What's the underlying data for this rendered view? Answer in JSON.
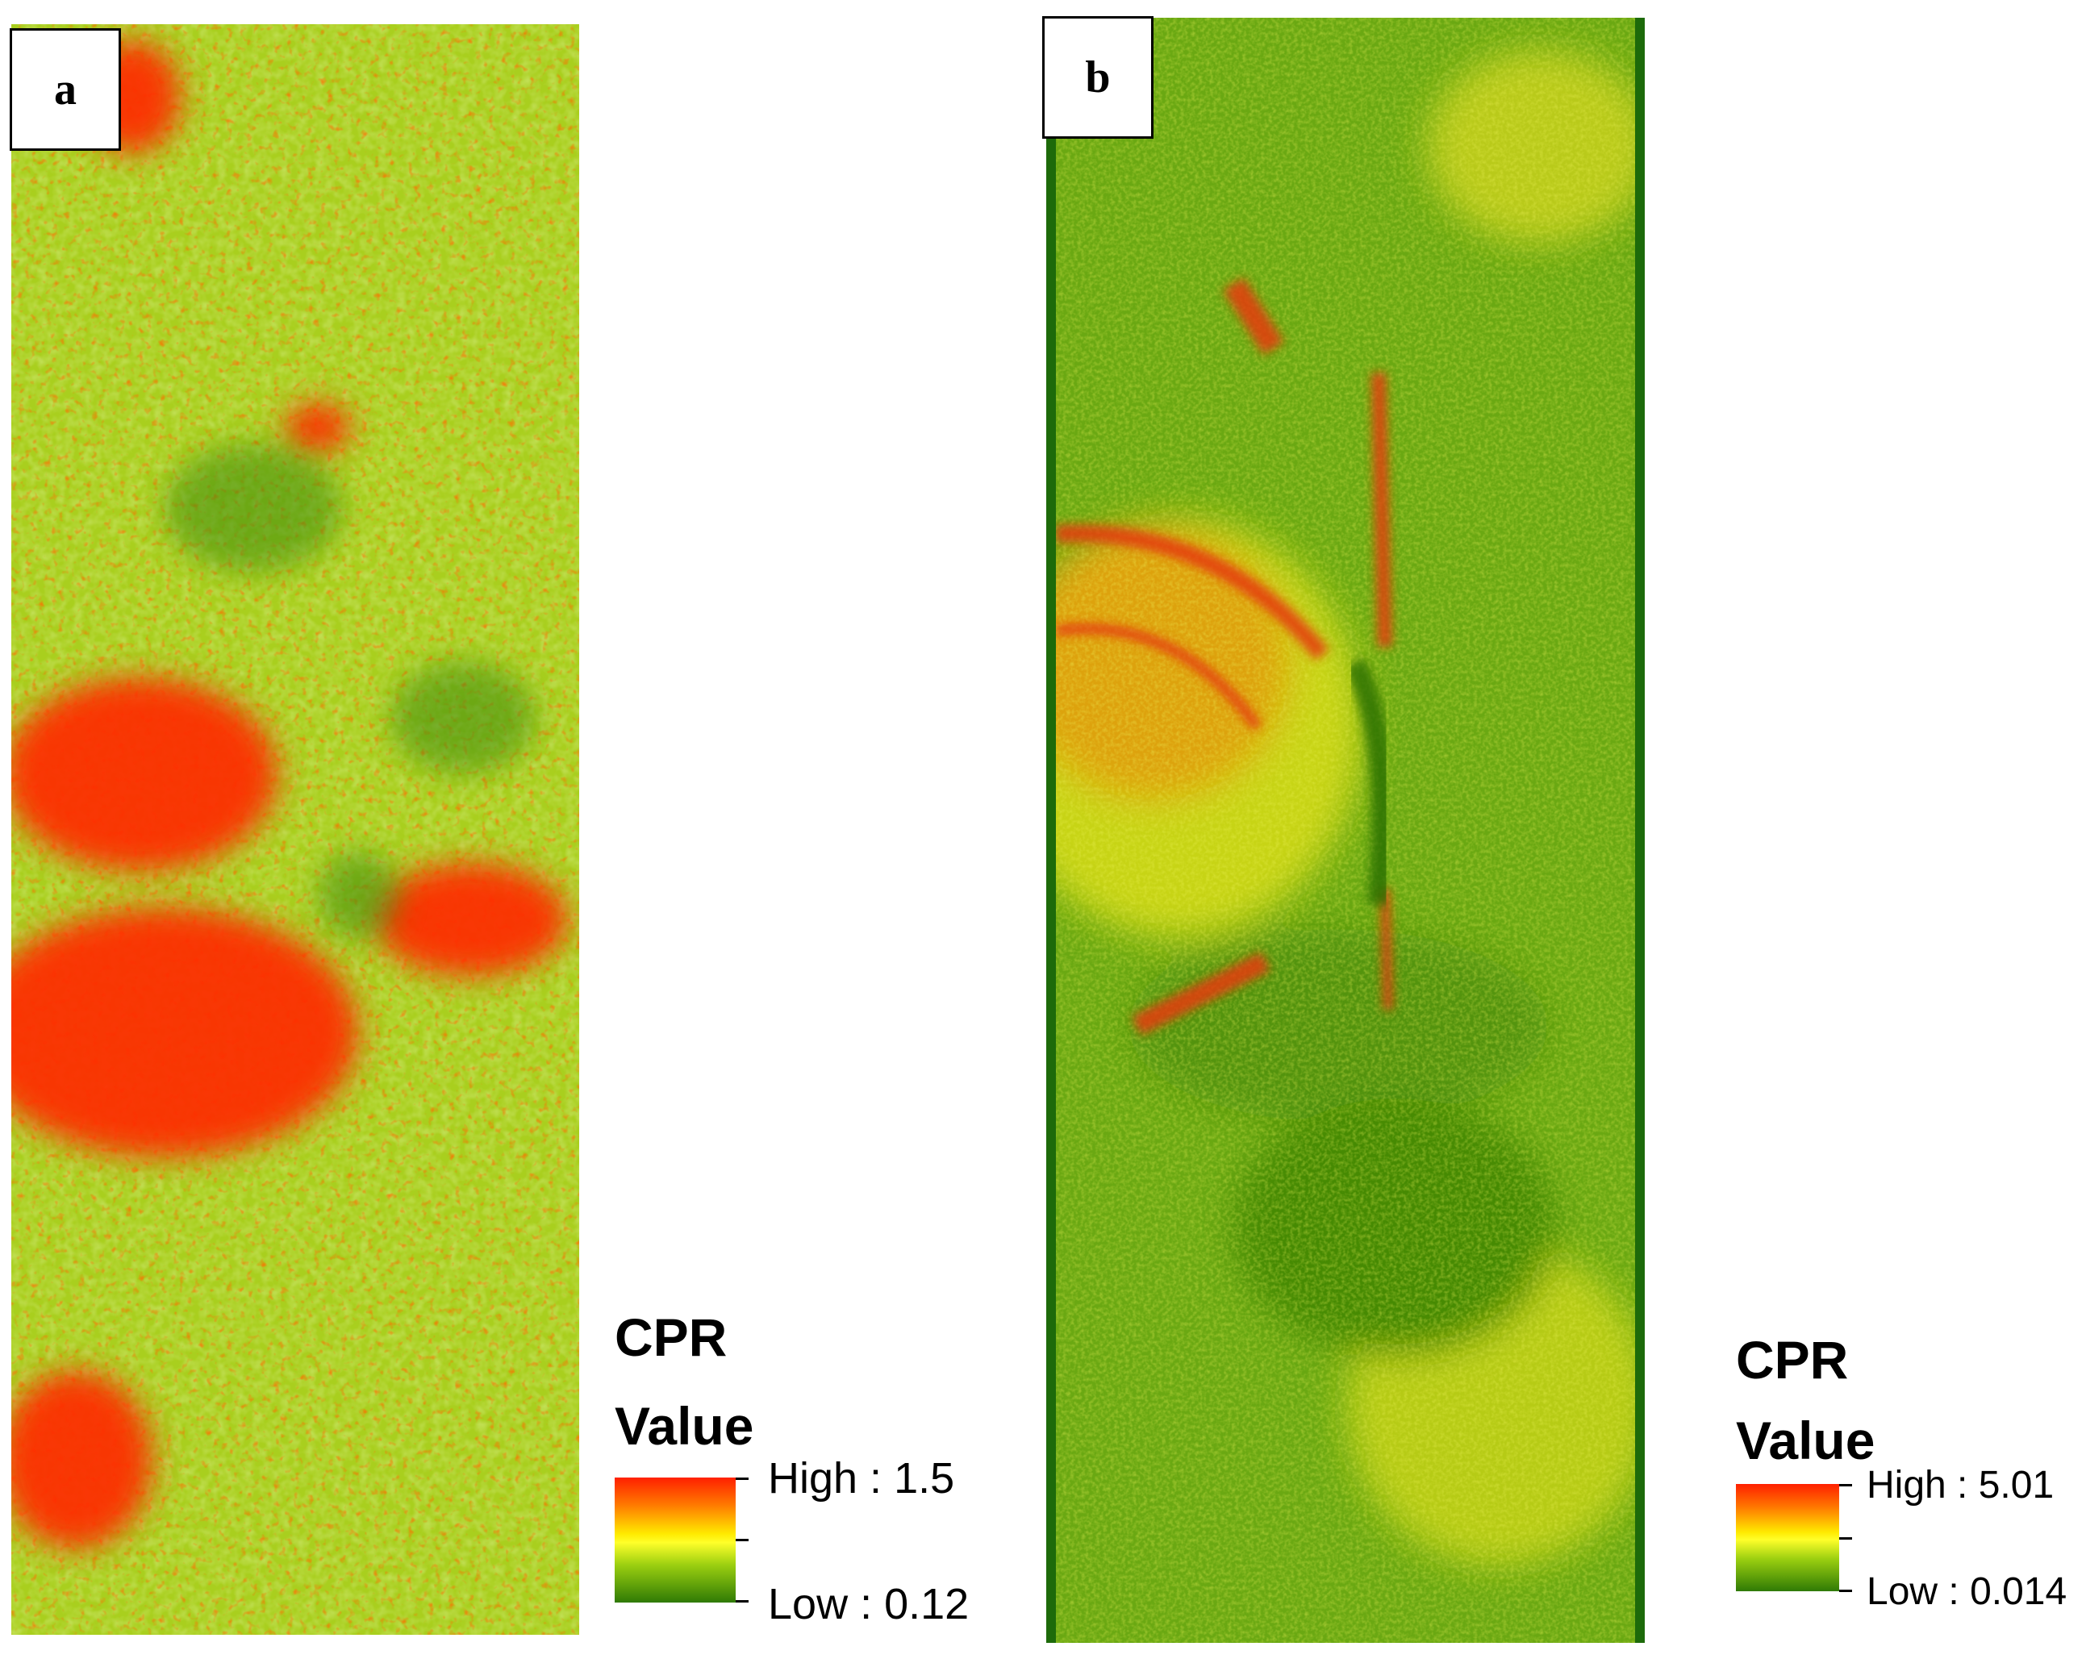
{
  "panels": [
    {
      "label": "a"
    },
    {
      "label": "b"
    }
  ],
  "legends": [
    {
      "title": "CPR",
      "field": "Value",
      "high": "High : 1.5",
      "low": "Low : 0.12"
    },
    {
      "title": "CPR",
      "field": "Value",
      "high": "High : 5.01",
      "low": "Low : 0.014"
    }
  ],
  "colors": {
    "high": "#ff1f00",
    "mid_high": "#ff7a00",
    "mid": "#ffea00",
    "mid_low": "#9bcf10",
    "low": "#2f7a05",
    "border_b": "#1d6a0a"
  }
}
